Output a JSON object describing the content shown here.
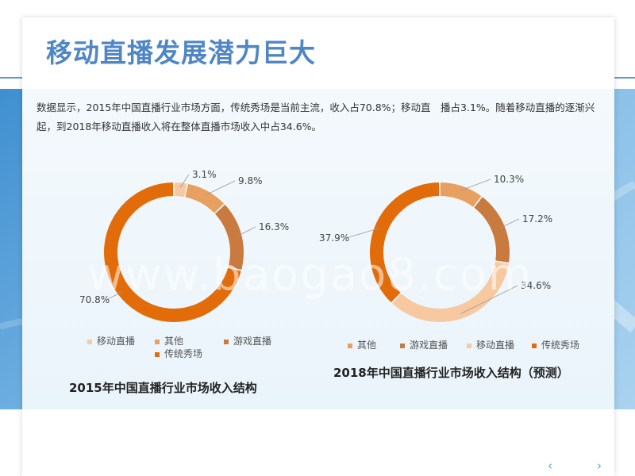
{
  "slide": {
    "title": "移动直播发展潜力巨大",
    "description": "数据显示，2015年中国直播行业市场方面，传统秀场是当前主流，收入占70.8%；移动直　播占3.1%。随着移动直播的逐渐兴起，到2018年移动直播收入将在整体直播市场收入中占34.6%。",
    "watermark": "www.baogao8.com"
  },
  "nav": {
    "prev_label": "‹",
    "next_label": "›"
  },
  "chart_data": [
    {
      "type": "pie",
      "subtype": "donut",
      "title": "2015年中国直播行业市场收入结构",
      "categories": [
        "移动直播",
        "其他",
        "游戏直播",
        "传统秀场"
      ],
      "values": [
        3.1,
        9.8,
        16.3,
        70.8
      ],
      "labels": [
        "3.1%",
        "9.8%",
        "16.3%",
        "70.8%"
      ],
      "colors": [
        "#f8c9a0",
        "#e8a060",
        "#c97a3e",
        "#e36c0a"
      ],
      "legend_placement": "bottom"
    },
    {
      "type": "pie",
      "subtype": "donut",
      "title": "2018年中国直播行业市场收入结构（预测）",
      "categories": [
        "其他",
        "游戏直播",
        "移动直播",
        "传统秀场"
      ],
      "values": [
        10.3,
        17.2,
        34.6,
        37.9
      ],
      "labels": [
        "10.3%",
        "17.2%",
        "34.6%",
        "37.9%"
      ],
      "colors": [
        "#e8a060",
        "#c97a3e",
        "#f8c9a0",
        "#e36c0a"
      ],
      "legend_placement": "bottom"
    }
  ]
}
